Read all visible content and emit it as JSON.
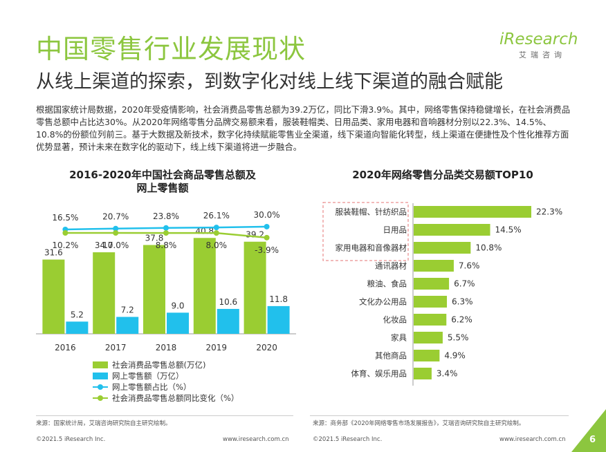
{
  "header": {
    "title": "中国零售行业发展现状",
    "subtitle": "从线上渠道的探索，到数字化对线上线下渠道的融合赋能"
  },
  "logo": {
    "main": "iResearch",
    "sub": "艾瑞咨询"
  },
  "body_text": "根据国家统计局数据，2020年受疫情影响，社会消费品零售总额为39.2万亿，同比下滑3.9%。其中，网络零售保持稳健增长，在社会消费品零售总额中占比达30%。从2020年网络零售分品牌交易额来看，服装鞋帽类、日用品类、家用电器和音响器材分别以22.3%、14.5%、10.8%的份额位列前三。基于大数据及新技术，数字化持续赋能零售业全渠道，线下渠道向智能化转型，线上渠道在便捷性及个性化推荐方面优势显著，预计未来在数字化的驱动下，线上线下渠道将进一步融合。",
  "colors": {
    "green": "#9acd32",
    "blue": "#21c0ec",
    "title_green": "#8cc63f",
    "highlight_border": "#e57373"
  },
  "chart_data": [
    {
      "type": "bar",
      "title": "2016-2020年中国社会商品零售总额及网上零售额",
      "title_lines": [
        "2016-2020年中国社会商品零售总额及",
        "网上零售额"
      ],
      "categories": [
        "2016",
        "2017",
        "2018",
        "2019",
        "2020"
      ],
      "series": [
        {
          "name": "社会消费品零售总额(万亿)",
          "kind": "bar",
          "values": [
            31.6,
            34.7,
            37.8,
            40.8,
            39.2
          ],
          "labels": [
            "31.6",
            "34.7",
            "37.8",
            "40.8",
            "39.2"
          ],
          "color": "#9acd32"
        },
        {
          "name": "网上零售额（万亿）",
          "kind": "bar",
          "values": [
            5.2,
            7.2,
            9.0,
            10.6,
            11.8
          ],
          "labels": [
            "5.2",
            "7.2",
            "9.0",
            "10.6",
            "11.8"
          ],
          "color": "#21c0ec"
        },
        {
          "name": "网上零售额占比（%）",
          "kind": "line",
          "values": [
            16.5,
            20.7,
            23.8,
            26.1,
            30.0
          ],
          "labels": [
            "16.5%",
            "20.7%",
            "23.8%",
            "26.1%",
            "30.0%"
          ],
          "color": "#21c0ec"
        },
        {
          "name": "社会消费品零售总额同比变化（%）",
          "kind": "line",
          "values": [
            10.2,
            10.0,
            8.8,
            8.0,
            -3.9
          ],
          "labels": [
            "10.2%",
            "10.0%",
            "8.8%",
            "8.0%",
            "-3.9%"
          ],
          "color": "#9acd32"
        }
      ],
      "legend_position": "bottom",
      "grid": false
    },
    {
      "type": "bar",
      "orientation": "horizontal",
      "title": "2020年网络零售分品类交易额TOP10",
      "categories": [
        "服装鞋帽、针纺织品",
        "日用品",
        "家用电器和音像器材",
        "通讯器材",
        "粮油、食品",
        "文化办公用品",
        "化妆品",
        "家具",
        "其他商品",
        "体育、娱乐用品"
      ],
      "values": [
        22.3,
        14.5,
        10.8,
        7.6,
        6.7,
        6.3,
        6.2,
        5.5,
        4.9,
        3.4
      ],
      "labels": [
        "22.3%",
        "14.5%",
        "10.8%",
        "7.6%",
        "6.7%",
        "6.3%",
        "6.2%",
        "5.5%",
        "4.9%",
        "3.4%"
      ],
      "color": "#9acd32",
      "highlight_top": 3,
      "grid": false
    }
  ],
  "sources": {
    "left": "来源：国家统计局，艾瑞咨询研究院自主研究绘制。",
    "right": "来源：商务部《2020年网络零售市场发展报告》，艾瑞咨询研究院自主研究绘制。"
  },
  "footer": {
    "copyright_left": "©2021.5 iResearch Inc.",
    "url_left": "www.iresearch.com.cn",
    "copyright_right": "©2021.5 iResearch Inc.",
    "url_right": "www.iresearch.com.cn",
    "page_number": "6"
  }
}
